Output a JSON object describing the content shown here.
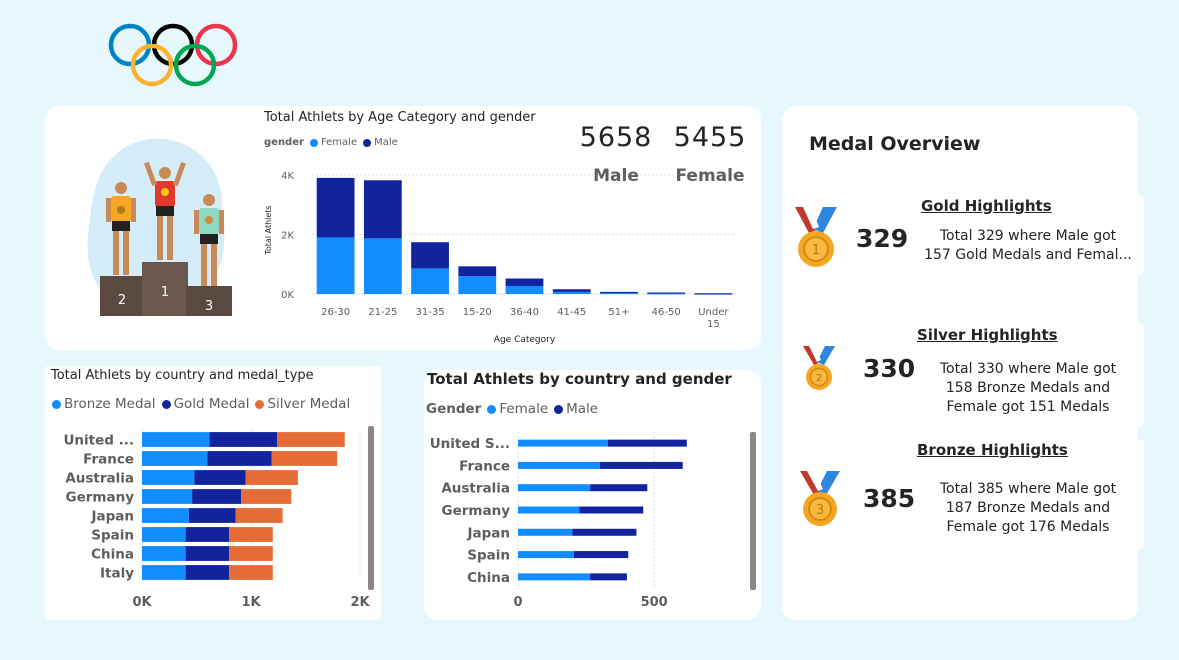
{
  "colors": {
    "female": "#118dff",
    "male": "#12239e",
    "bronze": "#118dff",
    "gold": "#12239e",
    "silver": "#e66c37",
    "page_bg": "#e6f8fc"
  },
  "logo": {
    "icon": "olympic-rings-icon"
  },
  "illustration": {
    "icon": "podium-athletes-icon",
    "places": [
      "2",
      "1",
      "3"
    ]
  },
  "age_chart": {
    "title": "Total Athlets by Age Category and gender",
    "legend_title": "gender",
    "legend": [
      "Female",
      "Male"
    ],
    "ylabel": "Total Athlets",
    "xlabel": "Age Category",
    "yticks": [
      "4K",
      "2K",
      "0K"
    ]
  },
  "kpis": {
    "male_value": "5658",
    "male_label": "Male",
    "female_value": "5455",
    "female_label": "Female"
  },
  "country_medal_chart": {
    "title": "Total Athlets by country and medal_type",
    "legend": [
      "Bronze Medal",
      "Gold Medal",
      "Silver Medal"
    ],
    "xticks": [
      "0K",
      "1K",
      "2K"
    ]
  },
  "country_gender_chart": {
    "title": "Total Athlets by country and gender",
    "legend_title": "Gender",
    "legend": [
      "Female",
      "Male"
    ],
    "xticks": [
      "0",
      "500"
    ]
  },
  "medal_overview": {
    "title": "Medal Overview",
    "gold": {
      "heading": "Gold Highlights",
      "value": "329",
      "line1": "Total 329 where Male got",
      "line2": "157 Gold Medals and Femal...",
      "icon": "gold-medal-icon",
      "number": "1"
    },
    "silver": {
      "heading": "Silver Highlights",
      "value": "330",
      "line1": "Total 330 where Male got",
      "line2": "158 Bronze Medals and",
      "line3": "Female got 151 Medals",
      "icon": "silver-medal-icon",
      "number": "2"
    },
    "bronze": {
      "heading": "Bronze Highlights",
      "value": "385",
      "line1": "Total 385 where Male got",
      "line2": "187 Bronze Medals and",
      "line3": "Female got 176 Medals",
      "icon": "bronze-medal-icon",
      "number": "3"
    }
  },
  "chart_data": [
    {
      "type": "bar",
      "stacked": true,
      "orientation": "vertical",
      "title": "Total Athlets by Age Category and gender",
      "xlabel": "Age Category",
      "ylabel": "Total Athlets",
      "categories": [
        "26-30",
        "21-25",
        "31-35",
        "15-20",
        "36-40",
        "41-45",
        "51+",
        "46-50",
        "Under 15"
      ],
      "series": [
        {
          "name": "Female",
          "values": [
            1900,
            1870,
            860,
            600,
            270,
            70,
            30,
            20,
            10
          ]
        },
        {
          "name": "Male",
          "values": [
            2000,
            1950,
            880,
            330,
            250,
            90,
            40,
            30,
            15
          ]
        }
      ],
      "ylim": [
        0,
        4300
      ],
      "legend": "top-left",
      "grid": true
    },
    {
      "type": "bar",
      "stacked": true,
      "orientation": "horizontal",
      "title": "Total Athlets by country and medal_type",
      "categories": [
        "United ...",
        "France",
        "Australia",
        "Germany",
        "Japan",
        "Spain",
        "China",
        "Italy"
      ],
      "series": [
        {
          "name": "Bronze Medal",
          "values": [
            620,
            600,
            480,
            460,
            430,
            400,
            400,
            400
          ]
        },
        {
          "name": "Gold Medal",
          "values": [
            620,
            590,
            470,
            450,
            430,
            400,
            400,
            400
          ]
        },
        {
          "name": "Silver Medal",
          "values": [
            620,
            600,
            480,
            460,
            430,
            400,
            400,
            400
          ]
        }
      ],
      "xlim": [
        0,
        2000
      ],
      "legend": "top-left",
      "grid": true
    },
    {
      "type": "bar",
      "stacked": true,
      "orientation": "horizontal",
      "title": "Total Athlets by country and gender",
      "categories": [
        "United S...",
        "France",
        "Australia",
        "Germany",
        "Japan",
        "Spain",
        "China"
      ],
      "series": [
        {
          "name": "Female",
          "values": [
            330,
            300,
            265,
            225,
            200,
            205,
            265
          ]
        },
        {
          "name": "Male",
          "values": [
            290,
            305,
            210,
            235,
            235,
            200,
            135
          ]
        }
      ],
      "xlim": [
        0,
        830
      ],
      "legend": "top-left",
      "grid": true
    }
  ]
}
